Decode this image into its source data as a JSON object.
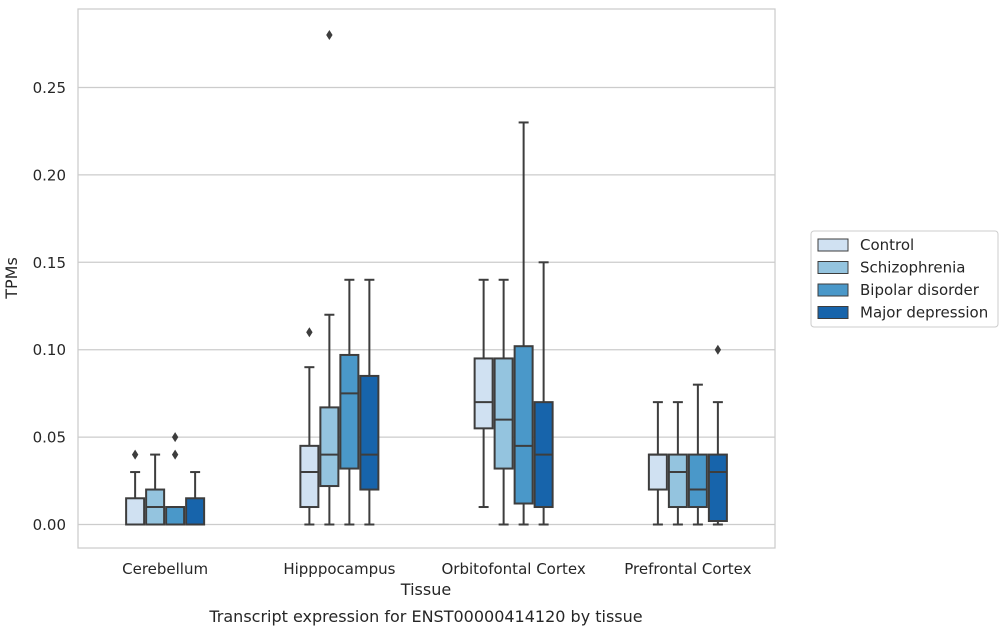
{
  "chart_data": {
    "type": "boxplot",
    "title": "",
    "caption": "Transcript expression for ENST00000414120 by tissue",
    "xlabel": "Tissue",
    "ylabel": "TPMs",
    "ylim": [
      -0.014,
      0.295
    ],
    "yticks": [
      0.0,
      0.05,
      0.1,
      0.15,
      0.2,
      0.25
    ],
    "ytick_labels": [
      "0.00",
      "0.05",
      "0.10",
      "0.15",
      "0.20",
      "0.25"
    ],
    "categories": [
      "Cerebellum",
      "Hipppocampus",
      "Orbitofontal Cortex",
      "Prefrontal Cortex"
    ],
    "grid": "horizontal",
    "legend_position": "right",
    "series": [
      {
        "name": "Control",
        "color": "#d0e1f2",
        "boxes": [
          {
            "whislo": 0.0,
            "q1": 0.0,
            "med": 0.0,
            "q3": 0.015,
            "whishi": 0.03,
            "fliers": [
              0.04
            ]
          },
          {
            "whislo": 0.0,
            "q1": 0.01,
            "med": 0.03,
            "q3": 0.045,
            "whishi": 0.09,
            "fliers": [
              0.11
            ]
          },
          {
            "whislo": 0.01,
            "q1": 0.055,
            "med": 0.07,
            "q3": 0.095,
            "whishi": 0.14,
            "fliers": []
          },
          {
            "whislo": 0.0,
            "q1": 0.02,
            "med": 0.04,
            "q3": 0.04,
            "whishi": 0.07,
            "fliers": []
          }
        ]
      },
      {
        "name": "Schizophrenia",
        "color": "#94c4df",
        "boxes": [
          {
            "whislo": 0.0,
            "q1": 0.0,
            "med": 0.01,
            "q3": 0.02,
            "whishi": 0.04,
            "fliers": []
          },
          {
            "whislo": 0.0,
            "q1": 0.022,
            "med": 0.04,
            "q3": 0.067,
            "whishi": 0.12,
            "fliers": [
              0.28
            ]
          },
          {
            "whislo": 0.0,
            "q1": 0.032,
            "med": 0.06,
            "q3": 0.095,
            "whishi": 0.14,
            "fliers": []
          },
          {
            "whislo": 0.0,
            "q1": 0.01,
            "med": 0.03,
            "q3": 0.04,
            "whishi": 0.07,
            "fliers": []
          }
        ]
      },
      {
        "name": "Bipolar disorder",
        "color": "#4a98c9",
        "boxes": [
          {
            "whislo": 0.0,
            "q1": 0.0,
            "med": 0.0,
            "q3": 0.01,
            "whishi": 0.01,
            "fliers": [
              0.04,
              0.05
            ]
          },
          {
            "whislo": 0.0,
            "q1": 0.032,
            "med": 0.075,
            "q3": 0.097,
            "whishi": 0.14,
            "fliers": []
          },
          {
            "whislo": 0.0,
            "q1": 0.012,
            "med": 0.045,
            "q3": 0.102,
            "whishi": 0.23,
            "fliers": []
          },
          {
            "whislo": 0.0,
            "q1": 0.01,
            "med": 0.02,
            "q3": 0.04,
            "whishi": 0.08,
            "fliers": []
          }
        ]
      },
      {
        "name": "Major depression",
        "color": "#1764ab",
        "boxes": [
          {
            "whislo": 0.0,
            "q1": 0.0,
            "med": 0.0,
            "q3": 0.015,
            "whishi": 0.03,
            "fliers": []
          },
          {
            "whislo": 0.0,
            "q1": 0.02,
            "med": 0.04,
            "q3": 0.085,
            "whishi": 0.14,
            "fliers": []
          },
          {
            "whislo": 0.0,
            "q1": 0.01,
            "med": 0.04,
            "q3": 0.07,
            "whishi": 0.15,
            "fliers": []
          },
          {
            "whislo": 0.0,
            "q1": 0.002,
            "med": 0.03,
            "q3": 0.04,
            "whishi": 0.07,
            "fliers": [
              0.1
            ]
          }
        ]
      }
    ]
  }
}
